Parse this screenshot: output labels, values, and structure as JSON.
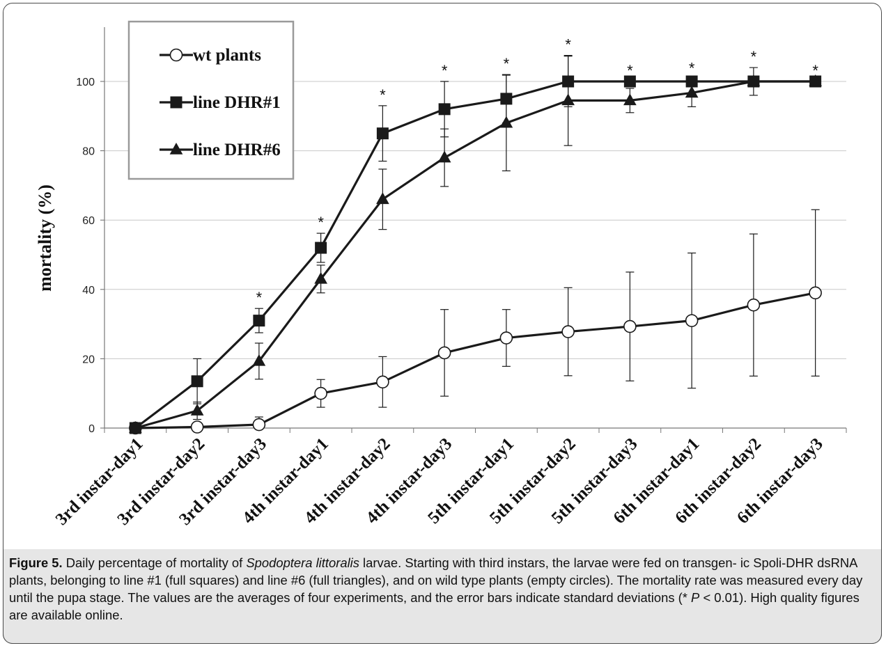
{
  "chart_data": {
    "type": "line",
    "ylabel": "mortality (%)",
    "xlabel": "",
    "ylim": [
      0,
      100
    ],
    "yticks": [
      0,
      20,
      40,
      60,
      80,
      100
    ],
    "grid": "horizontal",
    "legend_position": "top-left",
    "categories": [
      "3rd instar-day1",
      "3rd instar-day2",
      "3rd instar-day3",
      "4th instar-day1",
      "4th instar-day2",
      "4th instar-day3",
      "5th instar-day1",
      "5th instar-day2",
      "5th instar-day3",
      "6th instar-day1",
      "6th instar-day2",
      "6th instar-day3"
    ],
    "series": [
      {
        "name": "wt plants",
        "marker": "circle-open",
        "values": [
          0,
          0.3,
          1,
          10,
          13.3,
          21.7,
          26,
          27.8,
          29.3,
          31,
          35.5,
          39
        ],
        "errors": [
          0,
          0,
          2.2,
          4,
          7.3,
          12.5,
          8.2,
          12.7,
          15.7,
          19.5,
          20.5,
          24
        ]
      },
      {
        "name": "line DHR#1",
        "marker": "square-filled",
        "values": [
          0,
          13.5,
          31,
          52,
          85,
          92,
          95,
          100,
          100,
          100,
          100,
          100
        ],
        "errors": [
          0,
          6.5,
          3.5,
          4.2,
          8,
          8,
          7,
          7.3,
          0,
          0,
          4,
          0
        ]
      },
      {
        "name": "line DHR#6",
        "marker": "triangle-filled",
        "values": [
          0,
          5,
          19.3,
          43,
          66,
          78,
          88,
          94.5,
          94.5,
          96.7,
          100,
          100
        ],
        "errors": [
          0,
          2.5,
          5.2,
          4,
          8.7,
          8.3,
          13.8,
          13,
          3.5,
          4,
          0,
          0
        ]
      }
    ],
    "significance": {
      "symbol": "*",
      "categories": [
        "3rd instar-day3",
        "4th instar-day1",
        "4th instar-day2",
        "4th instar-day3",
        "5th instar-day1",
        "5th instar-day2",
        "5th instar-day3",
        "6th instar-day1",
        "6th instar-day2",
        "6th instar-day3"
      ]
    }
  },
  "caption": {
    "label": "Figure 5.",
    "part1": " Daily percentage of mortality of ",
    "species": "Spodoptera littoralis",
    "part2": " larvae. Starting with third instars, the larvae were fed on transgen- ic Spoli-DHR dsRNA plants, belonging to line #1 (full squares) and line #6 (full triangles), and on wild type plants (empty circles). The mortality rate was measured every day until the pupa stage. The values are the averages of four experiments, and the error bars indicate standard deviations (* ",
    "p_symbol": "P",
    "part3": " < 0.01). High quality figures are available online."
  },
  "colors": {
    "line": "#1a1a1a",
    "grid": "#c8c8c8",
    "caption_bg": "#e6e6e6",
    "legend_border": "#9a9a9a"
  }
}
